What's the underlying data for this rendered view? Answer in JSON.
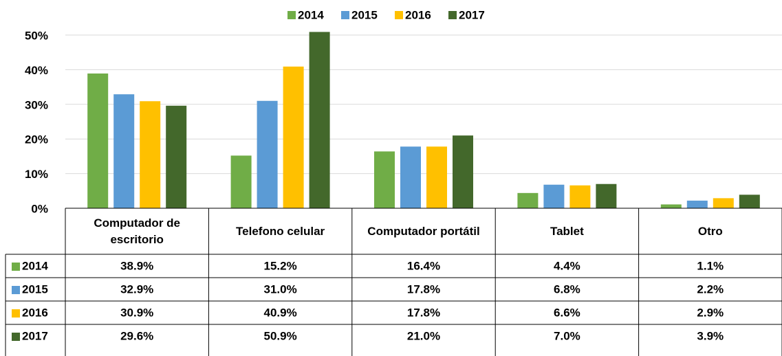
{
  "chart_data": {
    "type": "bar",
    "categories": [
      "Computador de escritorio",
      "Telefono celular",
      "Computador portátil",
      "Tablet",
      "Otro"
    ],
    "series": [
      {
        "name": "2014",
        "color": "#70ad47",
        "values": [
          38.9,
          15.2,
          16.4,
          4.4,
          1.1
        ],
        "value_labels": [
          "38.9%",
          "15.2%",
          "16.4%",
          "4.4%",
          "1.1%"
        ]
      },
      {
        "name": "2015",
        "color": "#5b9bd5",
        "values": [
          32.9,
          31.0,
          17.8,
          6.8,
          2.2
        ],
        "value_labels": [
          "32.9%",
          "31.0%",
          "17.8%",
          "6.8%",
          "2.2%"
        ]
      },
      {
        "name": "2016",
        "color": "#ffc000",
        "values": [
          30.9,
          40.9,
          17.8,
          6.6,
          2.9
        ],
        "value_labels": [
          "30.9%",
          "40.9%",
          "17.8%",
          "6.6%",
          "2.9%"
        ]
      },
      {
        "name": "2017",
        "color": "#43682b",
        "values": [
          29.6,
          50.9,
          21.0,
          7.0,
          3.9
        ],
        "value_labels": [
          "29.6%",
          "50.9%",
          "21.0%",
          "7.0%",
          "3.9%"
        ]
      }
    ],
    "ylim": [
      0,
      50
    ],
    "yticks": [
      {
        "value": 0,
        "label": "0%"
      },
      {
        "value": 10,
        "label": "10%"
      },
      {
        "value": 20,
        "label": "20%"
      },
      {
        "value": 30,
        "label": "30%"
      },
      {
        "value": 40,
        "label": "40%"
      },
      {
        "value": 50,
        "label": "50%"
      }
    ],
    "grid": true,
    "legend": "top"
  }
}
